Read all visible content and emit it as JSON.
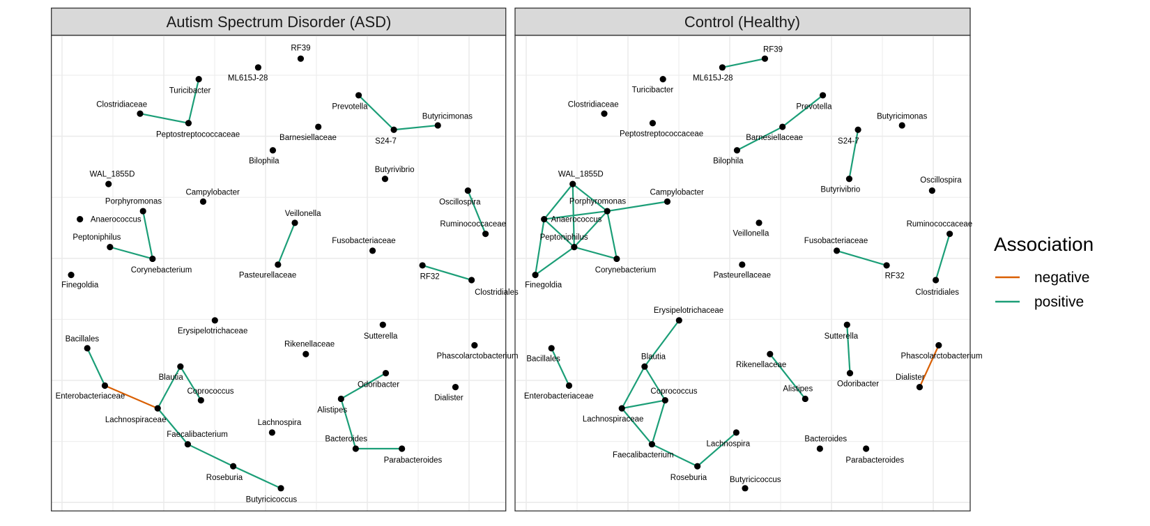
{
  "colors": {
    "negative": "#D95F02",
    "positive": "#1B9E77",
    "node": "#000000",
    "strip": "#D9D9D9"
  },
  "nodes": [
    "RF39",
    "ML615J-28",
    "Turicibacter",
    "Clostridiaceae",
    "Peptostreptococcaceae",
    "Prevotella",
    "S24-7",
    "Butyricimonas",
    "Barnesiellaceae",
    "Bilophila",
    "WAL_1855D",
    "Butyrivibrio",
    "Campylobacter",
    "Oscillospira",
    "Porphyromonas",
    "Anaerococcus",
    "Veillonella",
    "Ruminococcaceae",
    "Peptoniphilus",
    "Fusobacteriaceae",
    "Corynebacterium",
    "Pasteurellaceae",
    "RF32",
    "Clostridiales",
    "Finegoldia",
    "Erysipelotrichaceae",
    "Sutterella",
    "Bacillales",
    "Rikenellaceae",
    "Phascolarctobacterium",
    "Blautia",
    "Odoribacter",
    "Enterobacteriaceae",
    "Dialister",
    "Coprococcus",
    "Alistipes",
    "Lachnospiraceae",
    "Lachnospira",
    "Faecalibacterium",
    "Bacteroides",
    "Parabacteroides",
    "Roseburia",
    "Butyricicoccus"
  ],
  "panels": [
    {
      "title": "Autism Spectrum Disorder (ASD)",
      "edges": [
        {
          "from": "Turicibacter",
          "to": "Peptostreptococcaceae",
          "sign": "positive"
        },
        {
          "from": "Clostridiaceae",
          "to": "Peptostreptococcaceae",
          "sign": "positive"
        },
        {
          "from": "Prevotella",
          "to": "S24-7",
          "sign": "positive"
        },
        {
          "from": "S24-7",
          "to": "Butyricimonas",
          "sign": "positive"
        },
        {
          "from": "Porphyromonas",
          "to": "Corynebacterium",
          "sign": "positive"
        },
        {
          "from": "Peptoniphilus",
          "to": "Corynebacterium",
          "sign": "positive"
        },
        {
          "from": "Veillonella",
          "to": "Pasteurellaceae",
          "sign": "positive"
        },
        {
          "from": "Oscillospira",
          "to": "Ruminococcaceae",
          "sign": "positive"
        },
        {
          "from": "RF32",
          "to": "Clostridiales",
          "sign": "positive"
        },
        {
          "from": "Bacillales",
          "to": "Enterobacteriaceae",
          "sign": "positive"
        },
        {
          "from": "Enterobacteriaceae",
          "to": "Lachnospiraceae",
          "sign": "negative"
        },
        {
          "from": "Lachnospiraceae",
          "to": "Blautia",
          "sign": "positive"
        },
        {
          "from": "Blautia",
          "to": "Coprococcus",
          "sign": "positive"
        },
        {
          "from": "Lachnospiraceae",
          "to": "Faecalibacterium",
          "sign": "positive"
        },
        {
          "from": "Faecalibacterium",
          "to": "Roseburia",
          "sign": "positive"
        },
        {
          "from": "Roseburia",
          "to": "Butyricicoccus",
          "sign": "positive"
        },
        {
          "from": "Odoribacter",
          "to": "Alistipes",
          "sign": "positive"
        },
        {
          "from": "Alistipes",
          "to": "Bacteroides",
          "sign": "positive"
        },
        {
          "from": "Bacteroides",
          "to": "Parabacteroides",
          "sign": "positive"
        }
      ]
    },
    {
      "title": "Control (Healthy)",
      "edges": [
        {
          "from": "ML615J-28",
          "to": "RF39",
          "sign": "positive"
        },
        {
          "from": "Prevotella",
          "to": "Barnesiellaceae",
          "sign": "positive"
        },
        {
          "from": "Barnesiellaceae",
          "to": "Bilophila",
          "sign": "positive"
        },
        {
          "from": "S24-7",
          "to": "Butyrivibrio",
          "sign": "positive"
        },
        {
          "from": "WAL_1855D",
          "to": "Anaerococcus",
          "sign": "positive"
        },
        {
          "from": "WAL_1855D",
          "to": "Peptoniphilus",
          "sign": "positive"
        },
        {
          "from": "WAL_1855D",
          "to": "Porphyromonas",
          "sign": "positive"
        },
        {
          "from": "Anaerococcus",
          "to": "Porphyromonas",
          "sign": "positive"
        },
        {
          "from": "Anaerococcus",
          "to": "Peptoniphilus",
          "sign": "positive"
        },
        {
          "from": "Anaerococcus",
          "to": "Finegoldia",
          "sign": "positive"
        },
        {
          "from": "Porphyromonas",
          "to": "Campylobacter",
          "sign": "positive"
        },
        {
          "from": "Porphyromonas",
          "to": "Peptoniphilus",
          "sign": "positive"
        },
        {
          "from": "Porphyromonas",
          "to": "Corynebacterium",
          "sign": "positive"
        },
        {
          "from": "Peptoniphilus",
          "to": "Corynebacterium",
          "sign": "positive"
        },
        {
          "from": "Peptoniphilus",
          "to": "Finegoldia",
          "sign": "positive"
        },
        {
          "from": "Fusobacteriaceae",
          "to": "RF32",
          "sign": "positive"
        },
        {
          "from": "Ruminococcaceae",
          "to": "Clostridiales",
          "sign": "positive"
        },
        {
          "from": "Erysipelotrichaceae",
          "to": "Blautia",
          "sign": "positive"
        },
        {
          "from": "Blautia",
          "to": "Coprococcus",
          "sign": "positive"
        },
        {
          "from": "Blautia",
          "to": "Lachnospiraceae",
          "sign": "positive"
        },
        {
          "from": "Lachnospiraceae",
          "to": "Coprococcus",
          "sign": "positive"
        },
        {
          "from": "Lachnospiraceae",
          "to": "Faecalibacterium",
          "sign": "positive"
        },
        {
          "from": "Coprococcus",
          "to": "Faecalibacterium",
          "sign": "positive"
        },
        {
          "from": "Faecalibacterium",
          "to": "Roseburia",
          "sign": "positive"
        },
        {
          "from": "Roseburia",
          "to": "Lachnospira",
          "sign": "positive"
        },
        {
          "from": "Bacillales",
          "to": "Enterobacteriaceae",
          "sign": "positive"
        },
        {
          "from": "Rikenellaceae",
          "to": "Alistipes",
          "sign": "positive"
        },
        {
          "from": "Sutterella",
          "to": "Odoribacter",
          "sign": "positive"
        },
        {
          "from": "Phascolarctobacterium",
          "to": "Dialister",
          "sign": "negative"
        }
      ]
    }
  ],
  "legend": {
    "title": "Association",
    "items": [
      {
        "label": "negative",
        "sign": "negative"
      },
      {
        "label": "positive",
        "sign": "positive"
      }
    ]
  }
}
